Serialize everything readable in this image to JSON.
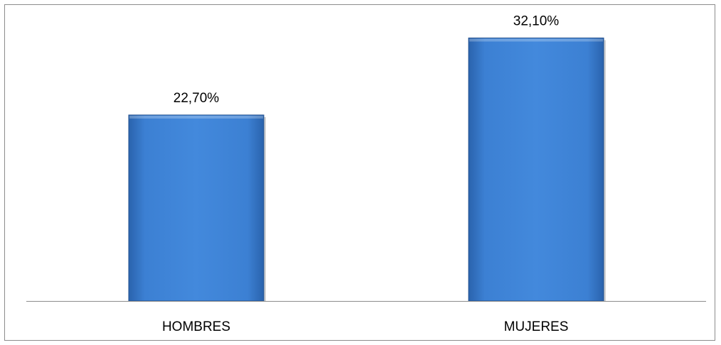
{
  "chart_data": {
    "type": "bar",
    "categories": [
      "HOMBRES",
      "MUJERES"
    ],
    "values": [
      22.7,
      32.1
    ],
    "value_labels": [
      "22,70%",
      "32,10%"
    ],
    "unit": "%",
    "title": "",
    "xlabel": "",
    "ylabel": "",
    "ylim": [
      0,
      35
    ],
    "grid": false,
    "legend": "none",
    "bar_color": "#3d7fd1",
    "bar_edge_color": "#24528f",
    "axis_color": "#8c8c8c"
  }
}
